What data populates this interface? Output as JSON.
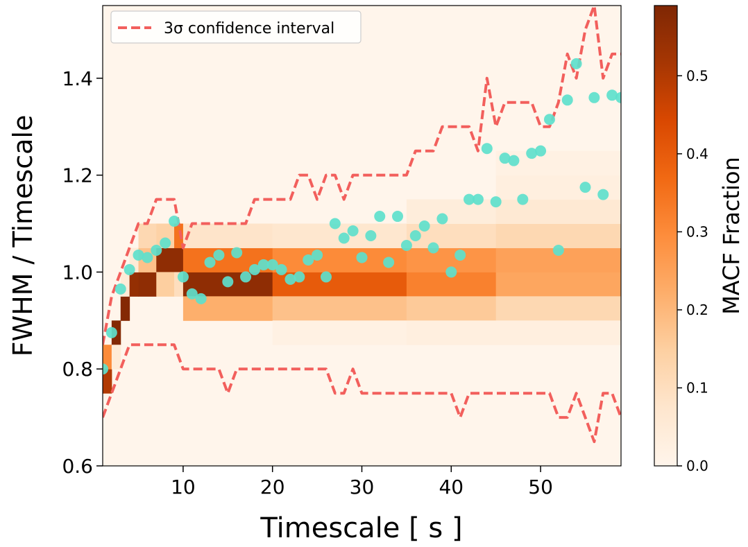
{
  "chart_data": {
    "type": "heatmap",
    "title": "",
    "xlabel": "Timescale [ s ]",
    "ylabel": "FWHM / Timescale",
    "xlim": [
      1,
      59
    ],
    "ylim": [
      0.6,
      1.55
    ],
    "x_ticks": [
      10,
      20,
      30,
      40,
      50
    ],
    "x_tick_labels": [
      "10",
      "20",
      "30",
      "40",
      "50"
    ],
    "y_ticks": [
      0.6,
      0.8,
      1.0,
      1.2,
      1.4
    ],
    "y_tick_labels": [
      "0.6",
      "0.8",
      "1.0",
      "1.2",
      "1.4"
    ],
    "grid": false,
    "colorbar": {
      "label": "MACF Fraction",
      "range": [
        0.0,
        0.59
      ],
      "colormap": "Oranges",
      "ticks": [
        0.0,
        0.1,
        0.2,
        0.3,
        0.4,
        0.5
      ],
      "tick_labels": [
        "0.0",
        "0.1",
        "0.2",
        "0.3",
        "0.4",
        "0.5"
      ]
    },
    "heatmap": {
      "y_bin_width": 0.05,
      "profiles": [
        {
          "x_from": 1,
          "x_to": 2,
          "bins": {
            "0.75": 0.5,
            "0.8": 0.3
          }
        },
        {
          "x_from": 2,
          "x_to": 3,
          "bins": {
            "0.85": 0.58,
            "0.8": 0.05
          }
        },
        {
          "x_from": 3,
          "x_to": 4,
          "bins": {
            "0.9": 0.58,
            "0.95": 0.05
          }
        },
        {
          "x_from": 4,
          "x_to": 5,
          "bins": {
            "0.95": 0.55,
            "1.0": 0.05
          }
        },
        {
          "x_from": 5,
          "x_to": 7,
          "bins": {
            "0.95": 0.56,
            "1.0": 0.18,
            "1.05": 0.12
          }
        },
        {
          "x_from": 7,
          "x_to": 9,
          "bins": {
            "1.0": 0.56,
            "0.95": 0.15,
            "1.05": 0.14
          }
        },
        {
          "x_from": 9,
          "x_to": 10,
          "bins": {
            "1.0": 0.56,
            "1.05": 0.35,
            "0.95": 0.1
          }
        },
        {
          "x_from": 10,
          "x_to": 20,
          "bins": {
            "0.95": 0.56,
            "0.9": 0.22,
            "1.0": 0.35,
            "1.05": 0.08
          }
        },
        {
          "x_from": 20,
          "x_to": 35,
          "bins": {
            "0.95": 0.4,
            "0.9": 0.18,
            "1.0": 0.3,
            "1.05": 0.07,
            "0.85": 0.02
          }
        },
        {
          "x_from": 35,
          "x_to": 45,
          "bins": {
            "0.95": 0.32,
            "0.9": 0.16,
            "1.0": 0.28,
            "1.05": 0.1,
            "1.1": 0.04,
            "0.85": 0.03
          }
        },
        {
          "x_from": 45,
          "x_to": 59,
          "bins": {
            "0.95": 0.24,
            "0.9": 0.12,
            "1.0": 0.25,
            "1.05": 0.12,
            "1.1": 0.06,
            "1.15": 0.03,
            "1.2": 0.02,
            "0.85": 0.03
          }
        }
      ]
    },
    "series": [
      {
        "name": "3σ confidence interval",
        "style": "dashed-line",
        "color": "#f25f5c",
        "upper": [
          [
            1,
            0.85
          ],
          [
            2,
            0.95
          ],
          [
            3,
            1.0
          ],
          [
            4,
            1.05
          ],
          [
            5,
            1.1
          ],
          [
            6,
            1.1
          ],
          [
            7,
            1.15
          ],
          [
            8,
            1.15
          ],
          [
            9,
            1.15
          ],
          [
            10,
            1.05
          ],
          [
            11,
            1.1
          ],
          [
            12,
            1.1
          ],
          [
            13,
            1.1
          ],
          [
            14,
            1.1
          ],
          [
            15,
            1.1
          ],
          [
            16,
            1.1
          ],
          [
            17,
            1.1
          ],
          [
            18,
            1.15
          ],
          [
            19,
            1.15
          ],
          [
            20,
            1.15
          ],
          [
            21,
            1.15
          ],
          [
            22,
            1.15
          ],
          [
            23,
            1.2
          ],
          [
            24,
            1.2
          ],
          [
            25,
            1.15
          ],
          [
            26,
            1.2
          ],
          [
            27,
            1.2
          ],
          [
            28,
            1.15
          ],
          [
            29,
            1.2
          ],
          [
            30,
            1.2
          ],
          [
            31,
            1.2
          ],
          [
            32,
            1.2
          ],
          [
            33,
            1.2
          ],
          [
            34,
            1.2
          ],
          [
            35,
            1.2
          ],
          [
            36,
            1.25
          ],
          [
            37,
            1.25
          ],
          [
            38,
            1.25
          ],
          [
            39,
            1.3
          ],
          [
            40,
            1.3
          ],
          [
            41,
            1.3
          ],
          [
            42,
            1.3
          ],
          [
            43,
            1.25
          ],
          [
            44,
            1.4
          ],
          [
            45,
            1.3
          ],
          [
            46,
            1.35
          ],
          [
            47,
            1.35
          ],
          [
            48,
            1.35
          ],
          [
            49,
            1.35
          ],
          [
            50,
            1.3
          ],
          [
            51,
            1.3
          ],
          [
            52,
            1.35
          ],
          [
            53,
            1.45
          ],
          [
            54,
            1.4
          ],
          [
            55,
            1.5
          ],
          [
            56,
            1.55
          ],
          [
            57,
            1.4
          ],
          [
            58,
            1.45
          ],
          [
            59,
            1.45
          ]
        ],
        "lower": [
          [
            1,
            0.7
          ],
          [
            2,
            0.75
          ],
          [
            3,
            0.8
          ],
          [
            4,
            0.85
          ],
          [
            5,
            0.85
          ],
          [
            6,
            0.85
          ],
          [
            7,
            0.85
          ],
          [
            8,
            0.85
          ],
          [
            9,
            0.85
          ],
          [
            10,
            0.8
          ],
          [
            11,
            0.8
          ],
          [
            12,
            0.8
          ],
          [
            13,
            0.8
          ],
          [
            14,
            0.8
          ],
          [
            15,
            0.75
          ],
          [
            16,
            0.8
          ],
          [
            17,
            0.8
          ],
          [
            18,
            0.8
          ],
          [
            19,
            0.8
          ],
          [
            20,
            0.8
          ],
          [
            21,
            0.8
          ],
          [
            22,
            0.8
          ],
          [
            23,
            0.8
          ],
          [
            24,
            0.8
          ],
          [
            25,
            0.8
          ],
          [
            26,
            0.8
          ],
          [
            27,
            0.75
          ],
          [
            28,
            0.75
          ],
          [
            29,
            0.8
          ],
          [
            30,
            0.75
          ],
          [
            31,
            0.75
          ],
          [
            32,
            0.75
          ],
          [
            33,
            0.75
          ],
          [
            34,
            0.75
          ],
          [
            35,
            0.75
          ],
          [
            36,
            0.75
          ],
          [
            37,
            0.75
          ],
          [
            38,
            0.75
          ],
          [
            39,
            0.75
          ],
          [
            40,
            0.75
          ],
          [
            41,
            0.7
          ],
          [
            42,
            0.75
          ],
          [
            43,
            0.75
          ],
          [
            44,
            0.75
          ],
          [
            45,
            0.75
          ],
          [
            46,
            0.75
          ],
          [
            47,
            0.75
          ],
          [
            48,
            0.75
          ],
          [
            49,
            0.75
          ],
          [
            50,
            0.75
          ],
          [
            51,
            0.75
          ],
          [
            52,
            0.7
          ],
          [
            53,
            0.7
          ],
          [
            54,
            0.75
          ],
          [
            55,
            0.7
          ],
          [
            56,
            0.65
          ],
          [
            57,
            0.75
          ],
          [
            58,
            0.75
          ],
          [
            59,
            0.7
          ]
        ]
      },
      {
        "name": "",
        "style": "scatter",
        "color": "#5ee0cc",
        "points": [
          [
            1.0,
            0.8
          ],
          [
            2.0,
            0.875
          ],
          [
            3.0,
            0.965
          ],
          [
            4.0,
            1.005
          ],
          [
            5.0,
            1.035
          ],
          [
            6.0,
            1.03
          ],
          [
            7.0,
            1.045
          ],
          [
            8.0,
            1.06
          ],
          [
            9.0,
            1.105
          ],
          [
            10.0,
            0.99
          ],
          [
            11.0,
            0.955
          ],
          [
            12.0,
            0.945
          ],
          [
            13.0,
            1.02
          ],
          [
            14.0,
            1.035
          ],
          [
            15.0,
            0.98
          ],
          [
            16.0,
            1.04
          ],
          [
            17.0,
            0.99
          ],
          [
            18.0,
            1.005
          ],
          [
            19.0,
            1.015
          ],
          [
            20.0,
            1.015
          ],
          [
            21.0,
            1.005
          ],
          [
            22.0,
            0.985
          ],
          [
            23.0,
            0.99
          ],
          [
            24.0,
            1.025
          ],
          [
            25.0,
            1.035
          ],
          [
            26.0,
            0.99
          ],
          [
            27.0,
            1.1
          ],
          [
            28.0,
            1.07
          ],
          [
            29.0,
            1.085
          ],
          [
            30.0,
            1.03
          ],
          [
            31.0,
            1.075
          ],
          [
            32.0,
            1.115
          ],
          [
            33.0,
            1.02
          ],
          [
            34.0,
            1.115
          ],
          [
            35.0,
            1.055
          ],
          [
            36.0,
            1.075
          ],
          [
            37.0,
            1.095
          ],
          [
            38.0,
            1.05
          ],
          [
            39.0,
            1.11
          ],
          [
            40.0,
            1.0
          ],
          [
            41.0,
            1.035
          ],
          [
            42.0,
            1.15
          ],
          [
            43.0,
            1.15
          ],
          [
            44.0,
            1.255
          ],
          [
            45.0,
            1.145
          ],
          [
            46.0,
            1.235
          ],
          [
            47.0,
            1.23
          ],
          [
            48.0,
            1.15
          ],
          [
            49.0,
            1.245
          ],
          [
            50.0,
            1.25
          ],
          [
            51.0,
            1.315
          ],
          [
            52.0,
            1.045
          ],
          [
            53.0,
            1.355
          ],
          [
            54.0,
            1.43
          ],
          [
            55.0,
            1.175
          ],
          [
            56.0,
            1.36
          ],
          [
            57.0,
            1.16
          ],
          [
            58.0,
            1.365
          ],
          [
            59.0,
            1.36
          ]
        ]
      }
    ],
    "legend": {
      "placement": "top-left",
      "entries": [
        "3σ confidence interval"
      ]
    }
  }
}
